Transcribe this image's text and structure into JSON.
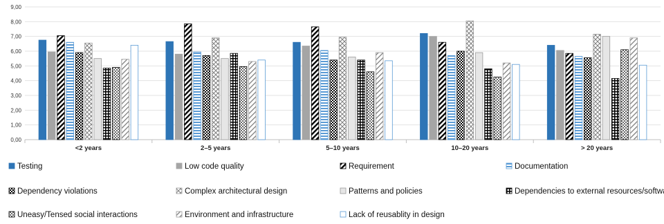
{
  "chart_data": {
    "type": "bar",
    "categories": [
      "<2 years",
      "2–5 years",
      "5–10 years",
      "10–20 years",
      "> 20 years"
    ],
    "y_ticks": [
      "0,00",
      "1,00",
      "2,00",
      "3,00",
      "4,00",
      "5,00",
      "6,00",
      "7,00",
      "8,00",
      "9,00"
    ],
    "ylim": [
      0,
      9
    ],
    "grid": true,
    "legend_position": "bottom",
    "series": [
      {
        "name": "Testing",
        "values": [
          6.75,
          6.65,
          6.6,
          7.2,
          6.4
        ],
        "pattern": "solid",
        "color": "#2e75b6"
      },
      {
        "name": "Low code quality",
        "values": [
          5.95,
          5.8,
          6.35,
          7.0,
          6.05
        ],
        "pattern": "solid",
        "color": "#a5a5a5"
      },
      {
        "name": "Requirement",
        "values": [
          7.05,
          7.85,
          7.65,
          6.6,
          5.85
        ],
        "pattern": "diag-black",
        "color": "#000000"
      },
      {
        "name": "Documentation",
        "values": [
          6.6,
          5.95,
          6.05,
          5.7,
          5.65
        ],
        "pattern": "hstripe-blue",
        "color": "#5b9bd5"
      },
      {
        "name": "Dependency violations",
        "values": [
          5.9,
          5.7,
          5.4,
          6.0,
          5.55
        ],
        "pattern": "checker-black",
        "color": "#000000"
      },
      {
        "name": "Complex architectural design",
        "values": [
          6.55,
          6.9,
          6.95,
          8.05,
          7.15
        ],
        "pattern": "crosshatch-gray",
        "color": "#7f7f7f"
      },
      {
        "name": "Patterns and policies",
        "values": [
          5.5,
          5.5,
          5.6,
          5.9,
          7.0
        ],
        "pattern": "light-gray",
        "color": "#dcdcdc"
      },
      {
        "name": "Dependencies to external resources/software",
        "values": [
          4.85,
          5.85,
          5.4,
          4.8,
          4.15
        ],
        "pattern": "grid-black",
        "color": "#000000"
      },
      {
        "name": "Uneasy/Tensed social interactions",
        "values": [
          4.9,
          4.95,
          4.6,
          4.25,
          6.1
        ],
        "pattern": "dots-black",
        "color": "#000000"
      },
      {
        "name": "Environment and infrastructure",
        "values": [
          5.45,
          5.3,
          5.9,
          5.2,
          6.9
        ],
        "pattern": "diag-gray",
        "color": "#7f7f7f"
      },
      {
        "name": "Lack of reusablity in design",
        "values": [
          6.4,
          5.4,
          5.35,
          5.1,
          5.05
        ],
        "pattern": "outline-blue",
        "color": "#5b9bd5"
      }
    ]
  }
}
